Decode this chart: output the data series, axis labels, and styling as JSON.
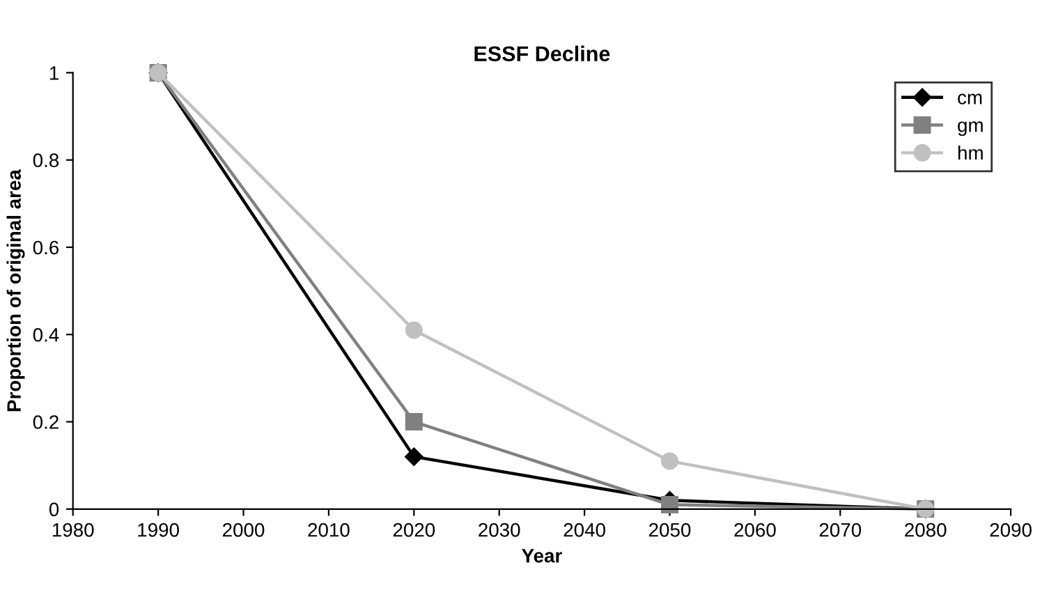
{
  "chart_data": {
    "type": "line",
    "title": "ESSF Decline",
    "xlabel": "Year",
    "ylabel": "Proportion of original area",
    "x": [
      1990,
      2020,
      2050,
      2080
    ],
    "series": [
      {
        "name": "cm",
        "color": "#000000",
        "marker": "diamond",
        "values": [
          1,
          0.12,
          0.02,
          0
        ]
      },
      {
        "name": "gm",
        "color": "#808080",
        "marker": "square",
        "values": [
          1,
          0.2,
          0.01,
          0
        ]
      },
      {
        "name": "hm",
        "color": "#c0c0c0",
        "marker": "circle",
        "values": [
          1,
          0.41,
          0.11,
          0
        ]
      }
    ],
    "xlim": [
      1980,
      2090
    ],
    "xticks": [
      1980,
      1990,
      2000,
      2010,
      2020,
      2030,
      2040,
      2050,
      2060,
      2070,
      2080,
      2090
    ],
    "ylim": [
      0,
      1
    ],
    "yticks": [
      0,
      0.2,
      0.4,
      0.6,
      0.8,
      1
    ],
    "grid": false,
    "legend": "top right",
    "line_style": "solid"
  }
}
